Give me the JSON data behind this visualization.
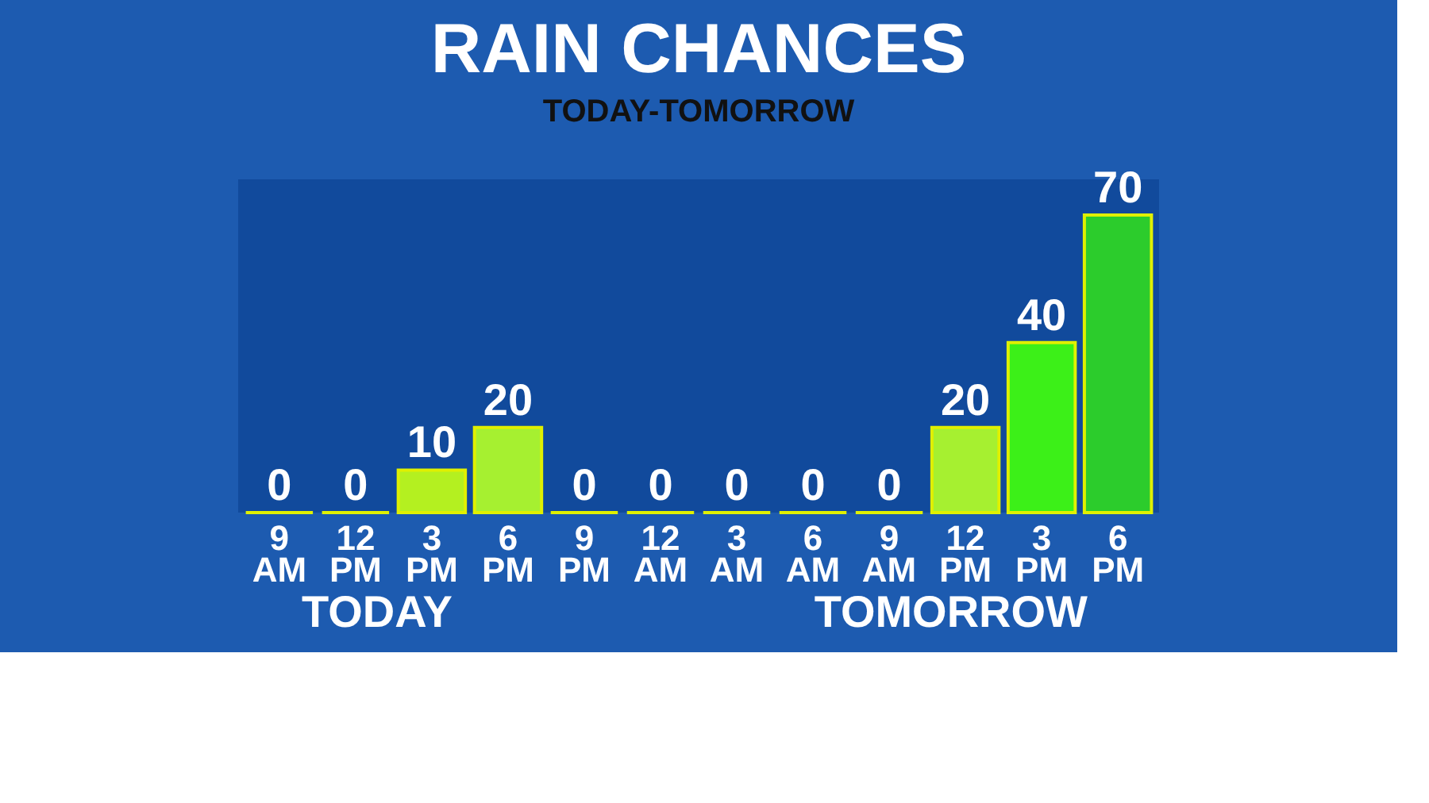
{
  "chart_data": {
    "type": "bar",
    "title": "RAIN CHANCES",
    "subtitle": "TODAY-TOMORROW",
    "categories": [
      "9 AM",
      "12 PM",
      "3 PM",
      "6 PM",
      "9 PM",
      "12 AM",
      "3 AM",
      "6 AM",
      "9 AM",
      "12 PM",
      "3 PM",
      "6 PM"
    ],
    "values": [
      0,
      0,
      10,
      20,
      0,
      0,
      0,
      0,
      0,
      20,
      40,
      70
    ],
    "colors": [
      "#d8f000",
      "#d8f000",
      "#b4f020",
      "#a6f030",
      "#d8f000",
      "#d8f000",
      "#d8f000",
      "#d8f000",
      "#d8f000",
      "#a6f030",
      "#3cf018",
      "#2ccc2c"
    ],
    "data_labels": true,
    "grid": false,
    "annotations": [
      "TODAY",
      "TOMORROW"
    ]
  }
}
